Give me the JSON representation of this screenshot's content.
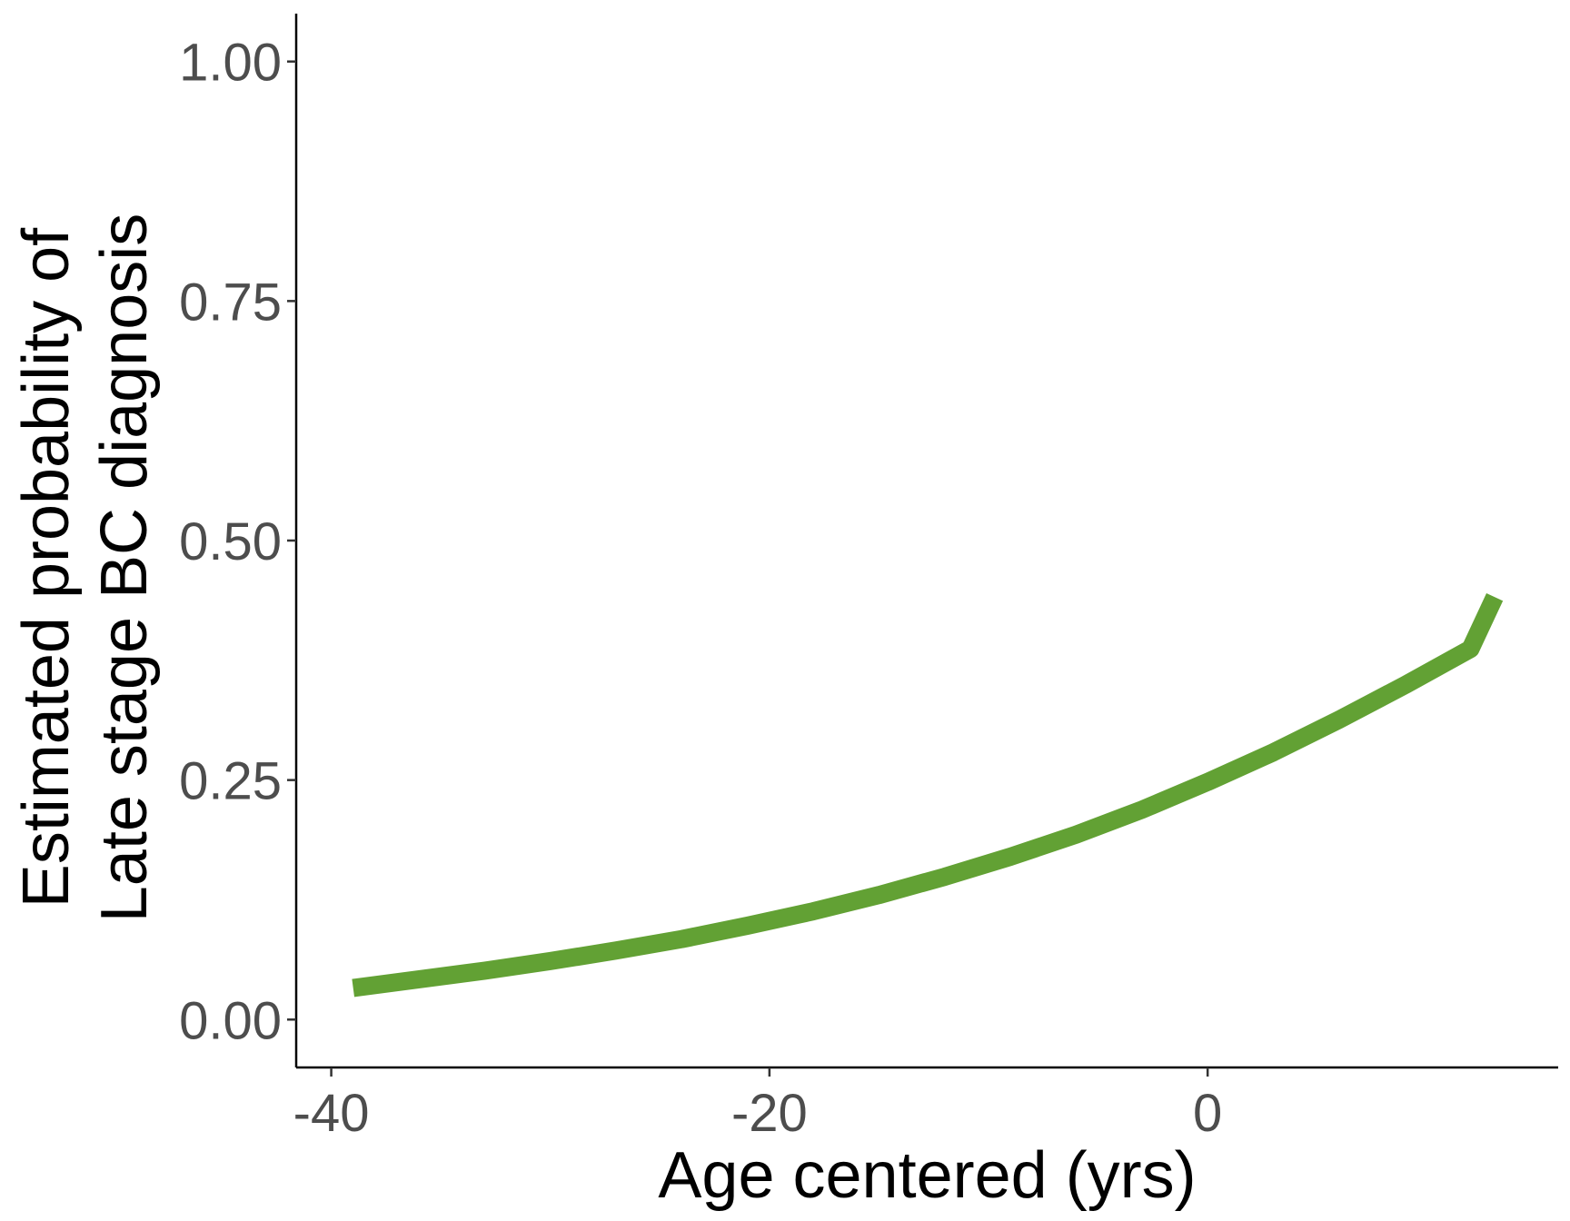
{
  "chart_data": {
    "type": "line",
    "title": "",
    "xlabel": "Age centered (yrs)",
    "ylabel_lines": [
      "Estimated probability of",
      "Late stage BC diagnosis"
    ],
    "xlim": [
      -41.6,
      16
    ],
    "ylim": [
      -0.05,
      1.05
    ],
    "x_ticks": [
      -40,
      -20,
      0
    ],
    "x_tick_labels": [
      "-40",
      "-20",
      "0"
    ],
    "y_ticks": [
      0,
      0.25,
      0.5,
      0.75,
      1
    ],
    "y_tick_labels": [
      "0.00",
      "0.25",
      "0.50",
      "0.75",
      "1.00"
    ],
    "grid": false,
    "legend": "none",
    "series": [
      {
        "color": "#62a134",
        "x": [
          -39,
          -36,
          -33,
          -30,
          -27,
          -24,
          -21,
          -18,
          -15,
          -12,
          -9,
          -6,
          -3,
          0,
          3,
          6,
          9,
          12,
          13.1
        ],
        "y": [
          0.033,
          0.042,
          0.051,
          0.061,
          0.072,
          0.084,
          0.098,
          0.113,
          0.13,
          0.149,
          0.17,
          0.193,
          0.219,
          0.248,
          0.279,
          0.313,
          0.349,
          0.387,
          0.441
        ]
      }
    ]
  }
}
